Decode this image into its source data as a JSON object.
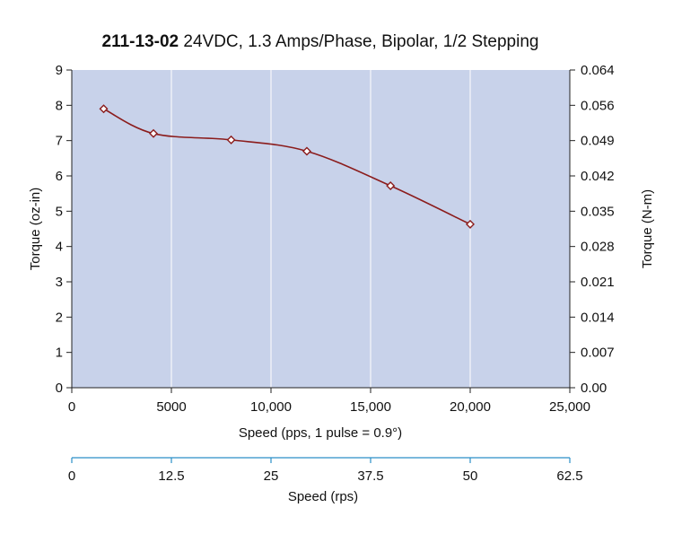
{
  "chart_data": {
    "type": "line",
    "title_bold": "211-13-02",
    "title_rest": " 24VDC, 1.3 Amps/Phase, Bipolar, 1/2 Stepping",
    "xlabel": "Speed (pps, 1 pulse = 0.9°)",
    "ylabel": "Torque (oz-in)",
    "y2label": "Torque (N-m)",
    "x2label": "Speed (rps)",
    "xlim": [
      0,
      25000
    ],
    "ylim": [
      0,
      9
    ],
    "x_ticks": [
      0,
      5000,
      10000,
      15000,
      20000,
      25000
    ],
    "x_tick_labels": [
      "0",
      "5000",
      "10,000",
      "15,000",
      "20,000",
      "25,000"
    ],
    "y_ticks": [
      0,
      1,
      2,
      3,
      4,
      5,
      6,
      7,
      8,
      9
    ],
    "y_tick_labels": [
      "0",
      "1",
      "2",
      "3",
      "4",
      "5",
      "6",
      "7",
      "8",
      "9"
    ],
    "y2_tick_labels": [
      "0.00",
      "0.007",
      "0.014",
      "0.021",
      "0.028",
      "0.035",
      "0.042",
      "0.049",
      "0.056",
      "0.064"
    ],
    "x2_ticks": [
      0,
      12.5,
      25,
      37.5,
      50,
      62.5
    ],
    "x2_tick_labels": [
      "0",
      "12.5",
      "25",
      "37.5",
      "50",
      "62.5"
    ],
    "x2lim": [
      0,
      62.5
    ],
    "grid": true,
    "series": [
      {
        "x": [
          1600,
          4100,
          8000,
          11800,
          16000,
          20000
        ],
        "y": [
          7.9,
          7.2,
          7.02,
          6.7,
          5.72,
          4.63
        ]
      }
    ],
    "colors": {
      "plot_bg": "#c8d2ea",
      "line": "#8b1c1c",
      "axis2": "#2a8fc8",
      "grid": "#ffffff"
    }
  }
}
